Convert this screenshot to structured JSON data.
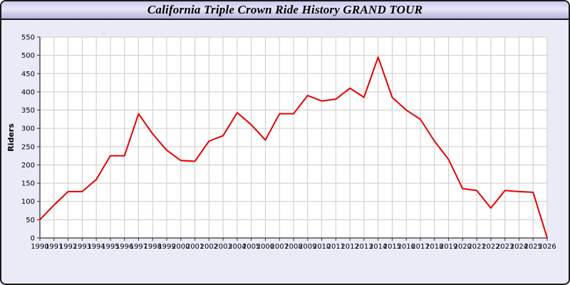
{
  "title_bar": {
    "text": "California Triple Crown Ride History GRAND TOUR"
  },
  "colors": {
    "page_background": "#ebebf8",
    "border": "#1a1a1a",
    "plot_background": "#ffffff",
    "grid": "#cccccc",
    "axis": "#333333",
    "line": "#e60000",
    "text": "#000000"
  },
  "chart_data": {
    "type": "line",
    "title": "California Triple Crown Ride History GRAND TOUR",
    "xlabel": "",
    "ylabel": "Riders",
    "ylim": [
      0,
      550
    ],
    "ytick_step": 50,
    "grid": true,
    "legend_position": "none",
    "x": [
      1990,
      1991,
      1992,
      1993,
      1994,
      1995,
      1996,
      1997,
      1998,
      1999,
      2000,
      2001,
      2002,
      2003,
      2004,
      2005,
      2006,
      2007,
      2008,
      2009,
      2010,
      2011,
      2012,
      2013,
      2014,
      2015,
      2016,
      2017,
      2018,
      2019,
      2020,
      2021,
      2022,
      2023,
      2024,
      2025,
      2026
    ],
    "series": [
      {
        "name": "Riders",
        "color": "#e60000",
        "values": [
          50,
          90,
          127,
          127,
          160,
          225,
          225,
          340,
          285,
          240,
          212,
          210,
          265,
          280,
          343,
          310,
          268,
          340,
          340,
          390,
          375,
          380,
          410,
          385,
          495,
          385,
          350,
          325,
          265,
          215,
          135,
          130,
          82,
          130,
          127,
          125,
          0
        ]
      }
    ]
  }
}
